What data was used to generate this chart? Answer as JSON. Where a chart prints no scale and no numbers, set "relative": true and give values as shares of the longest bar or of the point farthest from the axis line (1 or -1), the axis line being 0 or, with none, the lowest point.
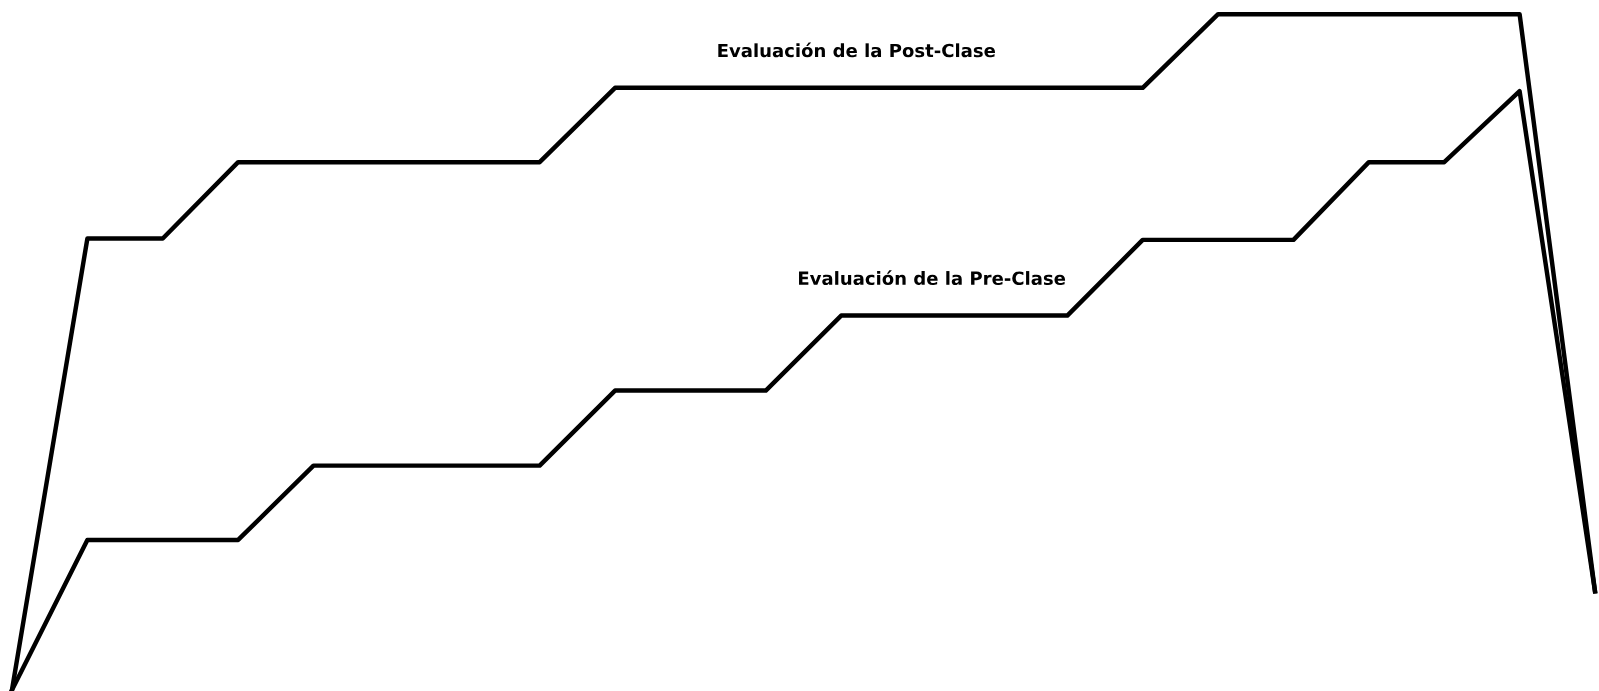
{
  "chart_data": {
    "type": "line",
    "relative": true,
    "categories": [
      null,
      null,
      null,
      null,
      null,
      null,
      null,
      null,
      null,
      null,
      null,
      null,
      null,
      null,
      null,
      null,
      null,
      null,
      null,
      null,
      null,
      null
    ],
    "series": [
      {
        "name": "Evaluación de la Post-Clase",
        "color": "#000000",
        "values": [
          0,
          0.668,
          0.668,
          0.781,
          0.781,
          0.781,
          0.781,
          0.781,
          0.891,
          0.891,
          0.891,
          0.891,
          0.891,
          0.891,
          0.891,
          0.891,
          1,
          1,
          1,
          1,
          1,
          0.146
        ]
      },
      {
        "name": "Evaluación de la Pre-Clase",
        "color": "#000000",
        "values": [
          0,
          0.222,
          0.222,
          0.222,
          0.332,
          0.332,
          0.332,
          0.332,
          0.443,
          0.443,
          0.443,
          0.554,
          0.554,
          0.554,
          0.554,
          0.666,
          0.666,
          0.666,
          0.781,
          0.781,
          0.886,
          0.146
        ]
      }
    ],
    "legend": false,
    "grid": false,
    "marker": "none",
    "line_style": "solid"
  }
}
